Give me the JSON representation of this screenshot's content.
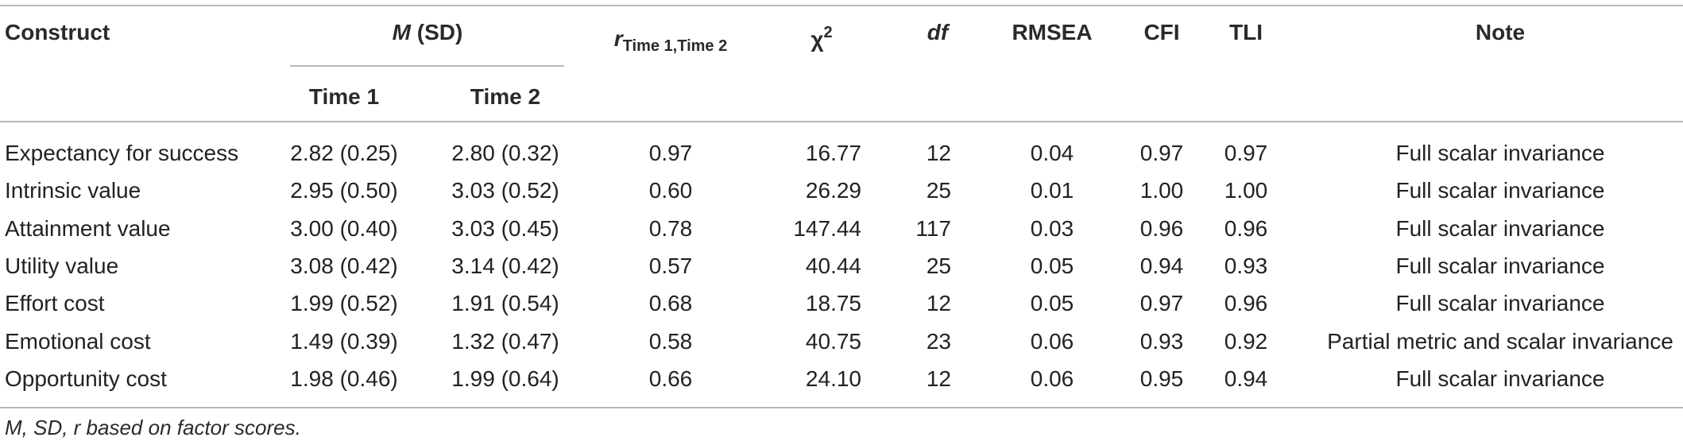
{
  "table": {
    "headers": {
      "construct": "Construct",
      "msd_m": "M",
      "msd_sd": "(SD)",
      "time1": "Time 1",
      "time2": "Time 2",
      "r_symbol": "r",
      "r_sub": "Time 1,Time 2",
      "chi_symbol": "χ",
      "chi_sup": "2",
      "df": "df",
      "rmsea": "RMSEA",
      "cfi": "CFI",
      "tli": "TLI",
      "note": "Note"
    },
    "rows": [
      {
        "construct": "Expectancy for success",
        "t1": "2.82 (0.25)",
        "t2": "2.80 (0.32)",
        "r": "0.97",
        "chi2": "16.77",
        "df": "12",
        "rmsea": "0.04",
        "cfi": "0.97",
        "tli": "0.97",
        "note": "Full scalar invariance"
      },
      {
        "construct": "Intrinsic value",
        "t1": "2.95 (0.50)",
        "t2": "3.03 (0.52)",
        "r": "0.60",
        "chi2": "26.29",
        "df": "25",
        "rmsea": "0.01",
        "cfi": "1.00",
        "tli": "1.00",
        "note": "Full scalar invariance"
      },
      {
        "construct": "Attainment value",
        "t1": "3.00 (0.40)",
        "t2": "3.03 (0.45)",
        "r": "0.78",
        "chi2": "147.44",
        "df": "117",
        "rmsea": "0.03",
        "cfi": "0.96",
        "tli": "0.96",
        "note": "Full scalar invariance"
      },
      {
        "construct": "Utility value",
        "t1": "3.08 (0.42)",
        "t2": "3.14 (0.42)",
        "r": "0.57",
        "chi2": "40.44",
        "df": "25",
        "rmsea": "0.05",
        "cfi": "0.94",
        "tli": "0.93",
        "note": "Full scalar invariance"
      },
      {
        "construct": "Effort cost",
        "t1": "1.99 (0.52)",
        "t2": "1.91 (0.54)",
        "r": "0.68",
        "chi2": "18.75",
        "df": "12",
        "rmsea": "0.05",
        "cfi": "0.97",
        "tli": "0.96",
        "note": "Full scalar invariance"
      },
      {
        "construct": "Emotional cost",
        "t1": "1.49 (0.39)",
        "t2": "1.32 (0.47)",
        "r": "0.58",
        "chi2": "40.75",
        "df": "23",
        "rmsea": "0.06",
        "cfi": "0.93",
        "tli": "0.92",
        "note": "Partial metric and scalar invariance"
      },
      {
        "construct": "Opportunity cost",
        "t1": "1.98 (0.46)",
        "t2": "1.99 (0.64)",
        "r": "0.66",
        "chi2": "24.10",
        "df": "12",
        "rmsea": "0.06",
        "cfi": "0.95",
        "tli": "0.94",
        "note": "Full scalar invariance"
      }
    ],
    "footnote": "M, SD, r based on factor scores."
  }
}
